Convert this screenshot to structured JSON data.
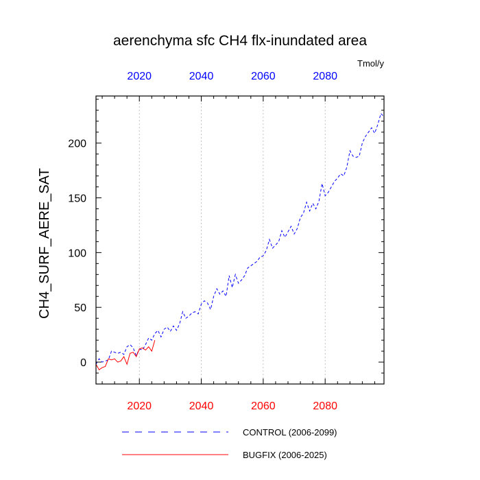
{
  "chart_data": {
    "type": "line",
    "title": "aerenchyma sfc CH4 flx-inundated area",
    "units": "Tmol/y",
    "ylabel": "CH4_SURF_AERE_SAT",
    "xlabel": "",
    "xlim": [
      2006,
      2099
    ],
    "ylim": [
      -20,
      243
    ],
    "x_ticks": [
      2020,
      2040,
      2060,
      2080
    ],
    "x_tick_labels": [
      "2020",
      "2040",
      "2060",
      "2080"
    ],
    "y_ticks": [
      0,
      50,
      100,
      150,
      200
    ],
    "y_tick_labels": [
      "0",
      "50",
      "100",
      "150",
      "200"
    ],
    "top_axis_color": "#0000ff",
    "bottom_axis_color": "#ff0000",
    "vertical_grid": true,
    "legend_position": "bottom",
    "series": [
      {
        "name": "CONTROL (2006-2099)",
        "color": "#0000ff",
        "dash": "dashed",
        "x_start": 2006,
        "values": [
          -2,
          3,
          0,
          1,
          2,
          10,
          9,
          8,
          9,
          7,
          14,
          16,
          13,
          6,
          12,
          11,
          16,
          22,
          20,
          26,
          29,
          23,
          30,
          32,
          28,
          33,
          29,
          35,
          46,
          40,
          42,
          45,
          46,
          44,
          53,
          56,
          54,
          48,
          60,
          67,
          62,
          65,
          60,
          79,
          68,
          80,
          72,
          75,
          79,
          86,
          88,
          90,
          92,
          96,
          97,
          102,
          112,
          104,
          107,
          110,
          120,
          114,
          119,
          124,
          117,
          122,
          132,
          136,
          146,
          138,
          145,
          140,
          147,
          163,
          152,
          155,
          160,
          165,
          168,
          172,
          170,
          178,
          193,
          188,
          187,
          188,
          200,
          206,
          210,
          214,
          209,
          217,
          227,
          224
        ]
      },
      {
        "name": "BUGFIX (2006-2025)",
        "color": "#ff0000",
        "dash": "solid",
        "x_start": 2006,
        "values": [
          -2,
          -7,
          -5,
          -4,
          3,
          2,
          3,
          0,
          1,
          5,
          -2,
          8,
          9,
          5,
          12,
          13,
          11,
          14,
          10,
          20
        ]
      }
    ]
  }
}
